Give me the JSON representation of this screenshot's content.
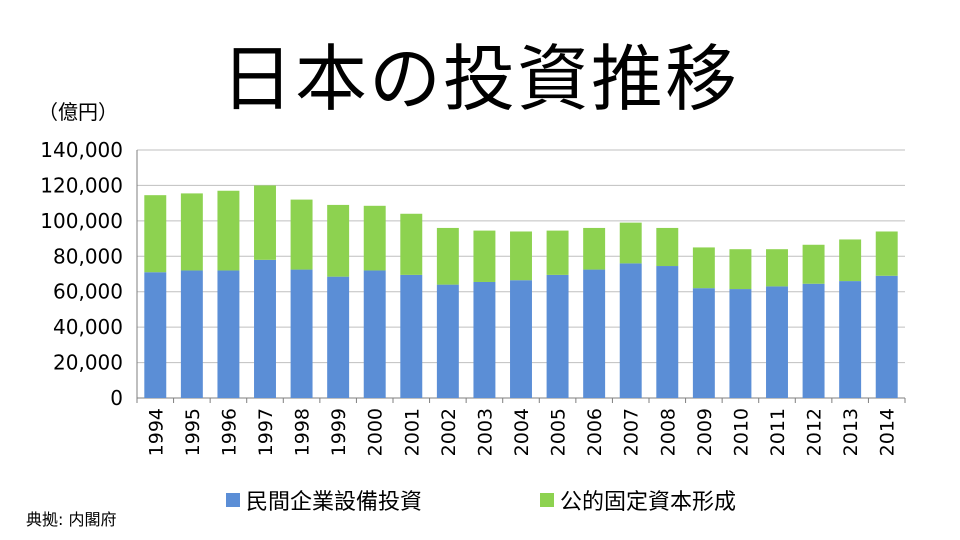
{
  "title": "日本の投資推移",
  "unit_label": "（億円）",
  "source_label": "典拠: 内閣府",
  "colors": {
    "private": "#5B8ED6",
    "public": "#8DD250",
    "grid": "#bfbfbf",
    "axis": "#7f7f7f"
  },
  "chart_data": {
    "type": "bar",
    "stacked": true,
    "categories": [
      "1994",
      "1995",
      "1996",
      "1997",
      "1998",
      "1999",
      "2000",
      "2001",
      "2002",
      "2003",
      "2004",
      "2005",
      "2006",
      "2007",
      "2008",
      "2009",
      "2010",
      "2011",
      "2012",
      "2013",
      "2014"
    ],
    "series": [
      {
        "name": "民間企業設備投資",
        "values": [
          71000,
          72000,
          72000,
          78000,
          72500,
          68500,
          72000,
          69500,
          64000,
          65500,
          66500,
          69500,
          72500,
          76000,
          74500,
          62000,
          61500,
          63000,
          64500,
          66000,
          69000
        ]
      },
      {
        "name": "公的固定資本形成",
        "values": [
          43500,
          43500,
          45000,
          42000,
          39500,
          40500,
          36500,
          34500,
          32000,
          29000,
          27500,
          25000,
          23500,
          23000,
          21500,
          23000,
          22500,
          21000,
          22000,
          23500,
          25000
        ]
      }
    ],
    "ylim": [
      0,
      140000
    ],
    "yticks": [
      "0",
      "20,000",
      "40,000",
      "60,000",
      "80,000",
      "100,000",
      "120,000",
      "140,000"
    ],
    "grid": true,
    "legend": "bottom"
  }
}
